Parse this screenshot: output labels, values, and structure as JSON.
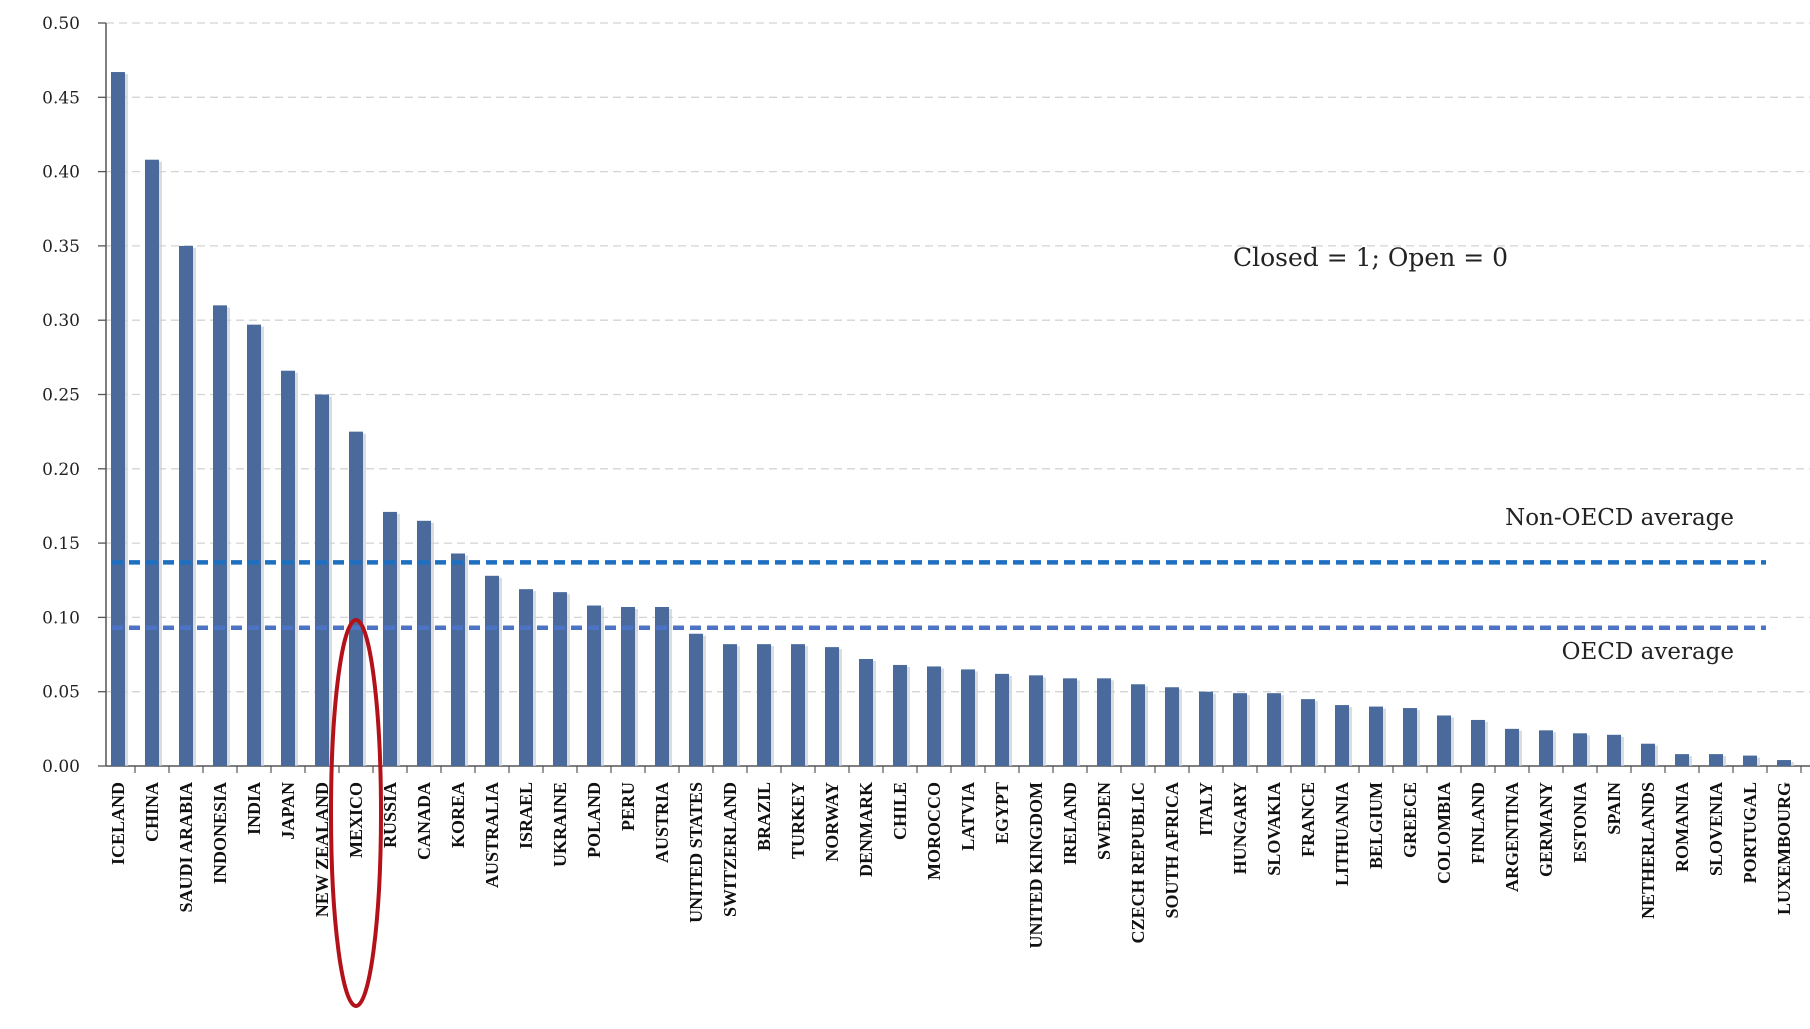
{
  "chart_data": {
    "type": "bar",
    "title": "",
    "xlabel": "",
    "ylabel": "",
    "ylim": [
      0,
      0.5
    ],
    "yticks": [
      "0.00",
      "0.05",
      "0.10",
      "0.15",
      "0.20",
      "0.25",
      "0.30",
      "0.35",
      "0.40",
      "0.45",
      "0.50"
    ],
    "grid": true,
    "categories": [
      "ICELAND",
      "CHINA",
      "SAUDI ARABIA",
      "INDONESIA",
      "INDIA",
      "JAPAN",
      "NEW ZEALAND",
      "MEXICO",
      "RUSSIA",
      "CANADA",
      "KOREA",
      "AUSTRALIA",
      "ISRAEL",
      "UKRAINE",
      "POLAND",
      "PERU",
      "AUSTRIA",
      "UNITED STATES",
      "SWITZERLAND",
      "BRAZIL",
      "TURKEY",
      "NORWAY",
      "DENMARK",
      "CHILE",
      "MOROCCO",
      "LATVIA",
      "EGYPT",
      "UNITED KINGDOM",
      "IRELAND",
      "SWEDEN",
      "CZECH REPUBLIC",
      "SOUTH AFRICA",
      "ITALY",
      "HUNGARY",
      "SLOVAKIA",
      "FRANCE",
      "LITHUANIA",
      "BELGIUM",
      "GREECE",
      "COLOMBIA",
      "FINLAND",
      "ARGENTINA",
      "GERMANY",
      "ESTONIA",
      "SPAIN",
      "NETHERLANDS",
      "ROMANIA",
      "SLOVENIA",
      "PORTUGAL",
      "LUXEMBOURG"
    ],
    "values": [
      0.467,
      0.408,
      0.35,
      0.31,
      0.297,
      0.266,
      0.25,
      0.225,
      0.171,
      0.165,
      0.143,
      0.128,
      0.119,
      0.117,
      0.108,
      0.107,
      0.107,
      0.089,
      0.082,
      0.082,
      0.082,
      0.08,
      0.072,
      0.068,
      0.067,
      0.065,
      0.062,
      0.061,
      0.059,
      0.059,
      0.055,
      0.053,
      0.05,
      0.049,
      0.049,
      0.045,
      0.041,
      0.04,
      0.039,
      0.034,
      0.031,
      0.025,
      0.024,
      0.022,
      0.021,
      0.015,
      0.008,
      0.008,
      0.007,
      0.004
    ],
    "bar_color": "#4a6a9c",
    "reference_lines": [
      {
        "label": "Non-OECD average",
        "value": 0.137,
        "color": "#1f6fc0"
      },
      {
        "label": "OECD average",
        "value": 0.093,
        "color": "#4d74c4"
      }
    ],
    "annotations": [
      "Closed = 1; Open = 0"
    ],
    "highlight": {
      "category": "MEXICO",
      "color": "#b3121a"
    }
  }
}
